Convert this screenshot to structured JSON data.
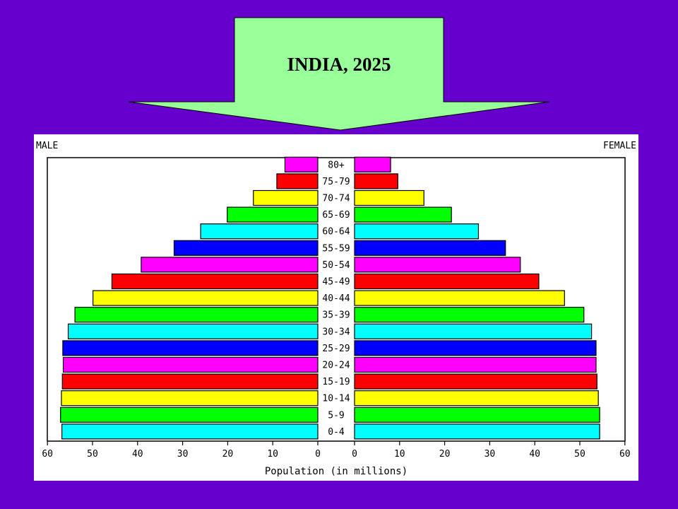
{
  "slide": {
    "title": "INDIA, 2025",
    "background": "#6600cc",
    "arrow_color": "#99ff99"
  },
  "chart_data": {
    "type": "bar",
    "orientation": "horizontal",
    "subtype": "population-pyramid",
    "left_label": "MALE",
    "right_label": "FEMALE",
    "xlabel": "Population (in millions)",
    "xlim": [
      0,
      60
    ],
    "x_ticks": [
      0,
      10,
      20,
      30,
      40,
      50,
      60
    ],
    "categories": [
      "0-4",
      "5-9",
      "10-14",
      "15-19",
      "20-24",
      "25-29",
      "30-34",
      "35-39",
      "40-44",
      "45-49",
      "50-54",
      "55-59",
      "60-64",
      "65-69",
      "70-74",
      "75-79",
      "80+"
    ],
    "series": [
      {
        "name": "MALE",
        "values": [
          56.8,
          57.1,
          56.9,
          56.7,
          56.5,
          56.6,
          55.4,
          53.9,
          49.9,
          45.7,
          39.2,
          31.9,
          26.0,
          20.1,
          14.3,
          9.1,
          7.3
        ]
      },
      {
        "name": "FEMALE",
        "values": [
          54.4,
          54.4,
          54.1,
          53.8,
          53.6,
          53.6,
          52.6,
          50.9,
          46.6,
          40.9,
          36.8,
          33.5,
          27.5,
          21.5,
          15.4,
          9.6,
          8.0
        ]
      }
    ],
    "bar_colors": [
      "#00ffff",
      "#00ff00",
      "#ffff00",
      "#ff0000",
      "#ff00ff",
      "#0000ff",
      "#00ffff",
      "#00ff00",
      "#ffff00",
      "#ff0000",
      "#ff00ff",
      "#0000ff",
      "#00ffff",
      "#00ff00",
      "#ffff00",
      "#ff0000",
      "#ff00ff"
    ],
    "grid": false,
    "legend": "none"
  }
}
